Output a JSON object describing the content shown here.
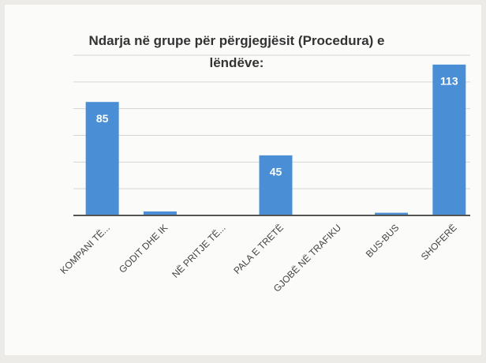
{
  "chart_data": {
    "type": "bar",
    "title": "Ndarja në grupe për përgjegjësit (Procedura) e lëndëve:",
    "categories": [
      "KOMPANI TË...",
      "GODIT DHE IK",
      "NË PRITJE TË...",
      "PALA E TRETË",
      "GJOBË NË TRAFIKU",
      "BUS-BUS",
      "SHOFERË"
    ],
    "values": [
      85,
      3,
      0,
      45,
      0,
      2,
      113
    ],
    "value_labels": [
      "85",
      null,
      null,
      "45",
      null,
      null,
      "113"
    ],
    "color": "#4a8fd6",
    "ylim": [
      0,
      120
    ],
    "yticks": [
      0,
      20,
      40,
      60,
      80,
      100,
      120
    ],
    "grid": true
  }
}
